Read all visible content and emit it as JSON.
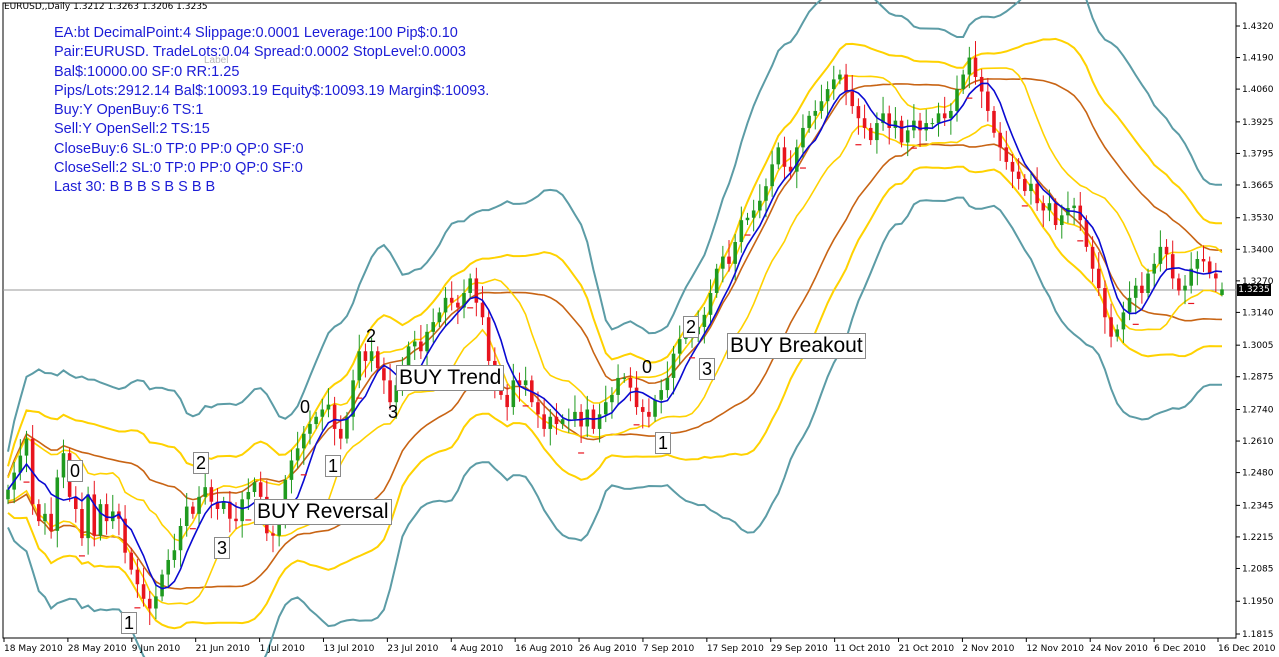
{
  "symbol_label": "EURUSD,,Daily  1.3212 1.3263 1.3206 1.3235",
  "info_lines": [
    "EA:bt DecimalPoint:4 Slippage:0.0001 Leverage:100 Pip$:0.10",
    "Pair:EURUSD. TradeLots:0.04 Spread:0.0002 StopLevel:0.0003",
    "Bal$:10000.00 SF:0 RR:1.25",
    "Pips/Lots:2912.14 Bal$:10093.19 Equity$:10093.19 Margin$:10093.",
    "Buy:Y OpenBuy:6 TS:1",
    "Sell:Y OpenSell:2 TS:15",
    "CloseBuy:6 SL:0 TP:0 PP:0 QP:0 SF:0",
    "CloseSell:2 SL:0 TP:0 PP:0 QP:0 SF:0",
    "Last 30: B B B S B S B B"
  ],
  "faint_label": "Label",
  "annotations": {
    "buy_reversal": "BUY Reversal",
    "buy_trend": "BUY Trend",
    "buy_breakout": "BUY Breakout"
  },
  "wave_labels": {
    "r0": "0",
    "r1": "1",
    "r2": "2",
    "r3": "3",
    "t0": "0",
    "t1": "1",
    "t2": "2",
    "t3": "3",
    "b0": "0",
    "b1": "1",
    "b2": "2",
    "b3": "3"
  },
  "current_price": "1.3235",
  "chart_data": {
    "type": "line",
    "title": "EURUSD,,Daily  1.3212 1.3263 1.3206 1.3235",
    "y_ticks": [
      "1.4320",
      "1.4190",
      "1.4060",
      "1.3925",
      "1.3795",
      "1.3665",
      "1.3530",
      "1.3400",
      "1.3270",
      "1.3140",
      "1.3005",
      "1.2875",
      "1.2740",
      "1.2610",
      "1.2480",
      "1.2345",
      "1.2215",
      "1.2085",
      "1.1950",
      "1.1815"
    ],
    "x_ticks": [
      "18 May 2010",
      "28 May 2010",
      "9 Jun 2010",
      "21 Jun 2010",
      "1 Jul 2010",
      "13 Jul 2010",
      "23 Jul 2010",
      "4 Aug 2010",
      "16 Aug 2010",
      "26 Aug 2010",
      "7 Sep 2010",
      "17 Sep 2010",
      "29 Sep 2010",
      "11 Oct 2010",
      "21 Oct 2010",
      "2 Nov 2010",
      "12 Nov 2010",
      "24 Nov 2010",
      "6 Dec 2010",
      "16 Dec 2010"
    ],
    "ylim": [
      1.1815,
      1.432
    ],
    "last_bar": {
      "open": 1.3212,
      "high": 1.3263,
      "low": 1.3206,
      "close": 1.3235
    },
    "close_series": [
      1.241,
      1.248,
      1.255,
      1.262,
      1.235,
      1.228,
      1.231,
      1.224,
      1.246,
      1.256,
      1.238,
      1.233,
      1.221,
      1.239,
      1.222,
      1.235,
      1.228,
      1.232,
      1.229,
      1.215,
      1.208,
      1.202,
      1.196,
      1.192,
      1.197,
      1.206,
      1.212,
      1.216,
      1.226,
      1.234,
      1.231,
      1.238,
      1.242,
      1.236,
      1.233,
      1.236,
      1.229,
      1.228,
      1.237,
      1.24,
      1.244,
      1.238,
      1.223,
      1.222,
      1.227,
      1.245,
      1.253,
      1.258,
      1.264,
      1.268,
      1.271,
      1.274,
      1.276,
      1.266,
      1.262,
      1.271,
      1.286,
      1.298,
      1.294,
      1.298,
      1.291,
      1.286,
      1.277,
      1.284,
      1.29,
      1.3,
      1.302,
      1.298,
      1.306,
      1.31,
      1.314,
      1.32,
      1.318,
      1.316,
      1.322,
      1.328,
      1.318,
      1.312,
      1.294,
      1.283,
      1.28,
      1.275,
      1.286,
      1.284,
      1.286,
      1.277,
      1.272,
      1.266,
      1.271,
      1.268,
      1.27,
      1.27,
      1.273,
      1.267,
      1.274,
      1.266,
      1.272,
      1.277,
      1.28,
      1.287,
      1.287,
      1.283,
      1.275,
      1.273,
      1.271,
      1.278,
      1.282,
      1.287,
      1.297,
      1.303,
      1.305,
      1.305,
      1.308,
      1.313,
      1.322,
      1.332,
      1.337,
      1.334,
      1.343,
      1.352,
      1.353,
      1.356,
      1.36,
      1.366,
      1.375,
      1.382,
      1.374,
      1.372,
      1.382,
      1.39,
      1.395,
      1.397,
      1.401,
      1.406,
      1.41,
      1.412,
      1.405,
      1.399,
      1.394,
      1.39,
      1.385,
      1.392,
      1.396,
      1.39,
      1.393,
      1.384,
      1.389,
      1.393,
      1.389,
      1.392,
      1.392,
      1.396,
      1.394,
      1.397,
      1.406,
      1.412,
      1.419,
      1.411,
      1.405,
      1.397,
      1.388,
      1.382,
      1.376,
      1.372,
      1.369,
      1.364,
      1.367,
      1.359,
      1.356,
      1.359,
      1.35,
      1.354,
      1.357,
      1.358,
      1.352,
      1.341,
      1.332,
      1.324,
      1.312,
      1.304,
      1.307,
      1.314,
      1.32,
      1.325,
      1.322,
      1.33,
      1.334,
      1.341,
      1.338,
      1.328,
      1.323,
      1.325,
      1.332,
      1.336,
      1.335,
      1.33,
      1.328,
      1.324
    ]
  }
}
